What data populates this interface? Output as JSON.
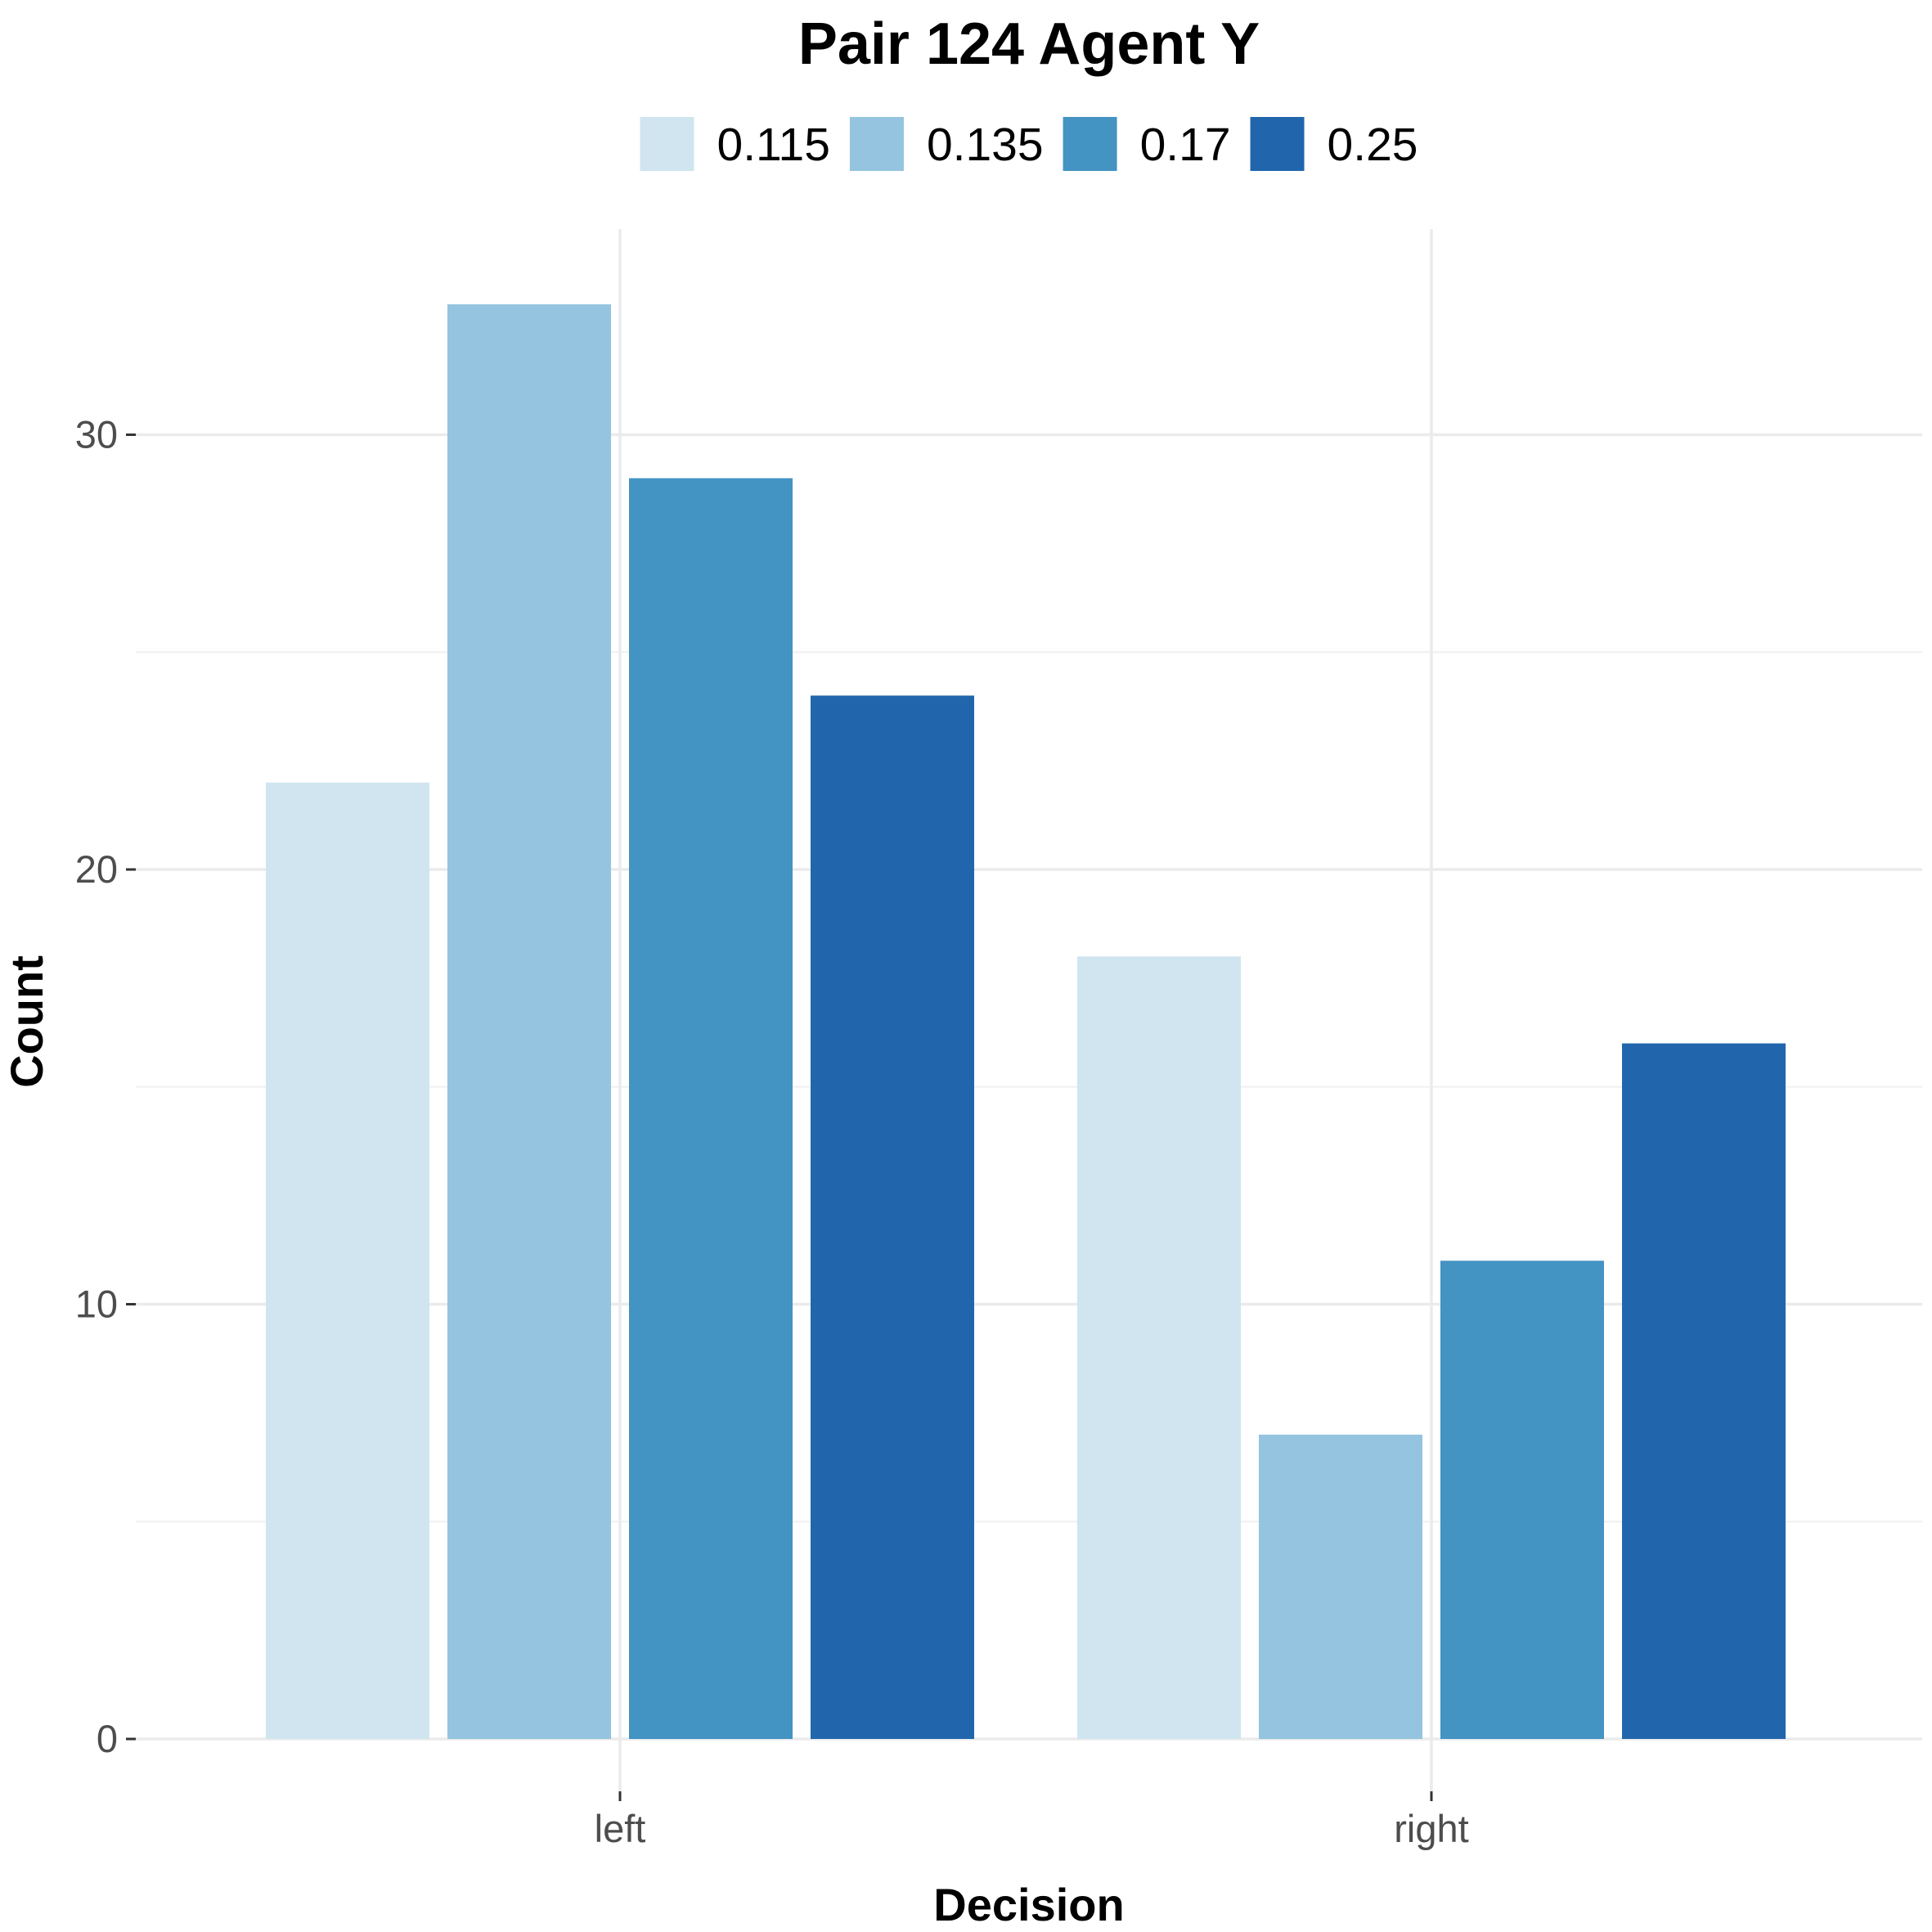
{
  "chart_data": {
    "type": "bar",
    "title": "Pair 124 Agent Y",
    "xlabel": "Decision",
    "ylabel": "Count",
    "categories": [
      "left",
      "right"
    ],
    "series": [
      {
        "name": "0.115",
        "values": [
          22,
          18
        ],
        "color": "#d1e5f0"
      },
      {
        "name": "0.135",
        "values": [
          33,
          7
        ],
        "color": "#94c4df"
      },
      {
        "name": "0.17",
        "values": [
          29,
          11
        ],
        "color": "#4393c3"
      },
      {
        "name": "0.25",
        "values": [
          24,
          16
        ],
        "color": "#2166ac"
      }
    ],
    "yticks": [
      0,
      10,
      20,
      30
    ],
    "ylim": [
      -1.5,
      34.7
    ],
    "legend_position": "top",
    "grid": true
  }
}
